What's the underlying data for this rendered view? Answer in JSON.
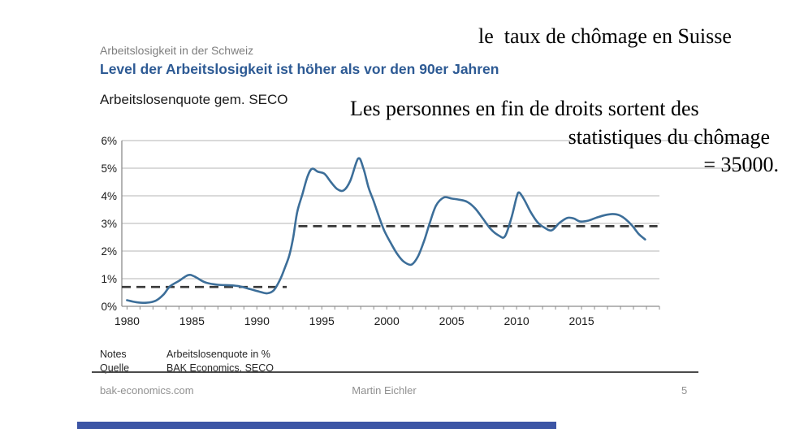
{
  "header": {
    "kicker": "Arbeitslosigkeit in der Schweiz",
    "headline": "Level der Arbeitslosigkeit ist höher als vor den 90er Jahren"
  },
  "annotations": {
    "line1": "le  taux de chômage en Suisse",
    "line2": "Les personnes en fin de droits sortent des",
    "line3": "statistiques du chômage",
    "line4": "= 35000."
  },
  "notes": {
    "notes_label": "Notes",
    "notes_value": "Arbeitslosenquote in %",
    "source_label": "Quelle",
    "source_value": "BAK Economics, SECO"
  },
  "footer": {
    "website": "bak-economics.com",
    "author": "Martin Eichler",
    "page_number": "5"
  },
  "colors": {
    "headline_blue": "#2d5a94",
    "kicker_gray": "#7e7e7e",
    "line_blue": "#3c6e99",
    "dashed_dark": "#383838",
    "grid_gray": "#b5b5b5",
    "axis_gray": "#8c8c8c",
    "scrollbar_blue": "#3c55a5"
  },
  "chart_data": {
    "type": "line",
    "title": "Arbeitslosenquote gem. SECO",
    "ylabel": "Arbeitslosenquote in %",
    "xlim": [
      1979.6,
      2021.0
    ],
    "ylim": [
      0,
      6
    ],
    "grid": "horizontal",
    "yticks": [
      "0%",
      "1%",
      "2%",
      "3%",
      "4%",
      "5%",
      "6%"
    ],
    "xticks": [
      1980,
      1985,
      1990,
      1995,
      2000,
      2005,
      2010,
      2015
    ],
    "minor_xtick_every": 1,
    "series": [
      {
        "name": "Arbeitslosenquote gem. SECO",
        "x": [
          1980.0,
          1980.7,
          1981.5,
          1982.2,
          1982.8,
          1983.3,
          1984.0,
          1984.7,
          1985.2,
          1986.0,
          1987.0,
          1988.0,
          1988.7,
          1989.5,
          1990.2,
          1990.8,
          1991.3,
          1991.8,
          1992.2,
          1992.5,
          1992.8,
          1993.1,
          1993.5,
          1993.9,
          1994.25,
          1994.7,
          1995.2,
          1995.7,
          1996.2,
          1996.7,
          1997.2,
          1997.8,
          1998.2,
          1998.6,
          1999.0,
          1999.4,
          1999.8,
          2000.3,
          2000.8,
          2001.3,
          2001.9,
          2002.4,
          2002.9,
          2003.3,
          2003.8,
          2004.4,
          2005.0,
          2005.6,
          2006.2,
          2006.8,
          2007.4,
          2008.0,
          2008.6,
          2009.1,
          2009.6,
          2010.0,
          2010.2,
          2010.6,
          2011.1,
          2011.6,
          2012.1,
          2012.7,
          2013.3,
          2013.9,
          2014.4,
          2014.9,
          2015.5,
          2016.1,
          2016.8,
          2017.4,
          2017.9,
          2018.4,
          2018.9,
          2019.4,
          2019.9
        ],
        "y": [
          0.22,
          0.15,
          0.13,
          0.2,
          0.42,
          0.72,
          0.92,
          1.13,
          1.08,
          0.87,
          0.78,
          0.76,
          0.72,
          0.62,
          0.53,
          0.47,
          0.58,
          0.98,
          1.45,
          1.85,
          2.5,
          3.4,
          4.05,
          4.7,
          4.98,
          4.87,
          4.8,
          4.5,
          4.24,
          4.2,
          4.55,
          5.35,
          5.0,
          4.3,
          3.8,
          3.25,
          2.75,
          2.3,
          1.9,
          1.62,
          1.51,
          1.8,
          2.4,
          3.0,
          3.65,
          3.94,
          3.9,
          3.86,
          3.78,
          3.55,
          3.18,
          2.8,
          2.57,
          2.53,
          3.2,
          3.95,
          4.12,
          3.85,
          3.4,
          3.05,
          2.86,
          2.75,
          3.02,
          3.2,
          3.18,
          3.07,
          3.1,
          3.2,
          3.3,
          3.34,
          3.3,
          3.15,
          2.92,
          2.62,
          2.42
        ]
      }
    ],
    "reference_lines": [
      {
        "value": 0.7,
        "x_start": 1979.6,
        "x_end": 1992.3,
        "style": "dashed"
      },
      {
        "value": 2.9,
        "x_start": 1993.2,
        "x_end": 2020.85,
        "style": "dashed"
      }
    ]
  }
}
